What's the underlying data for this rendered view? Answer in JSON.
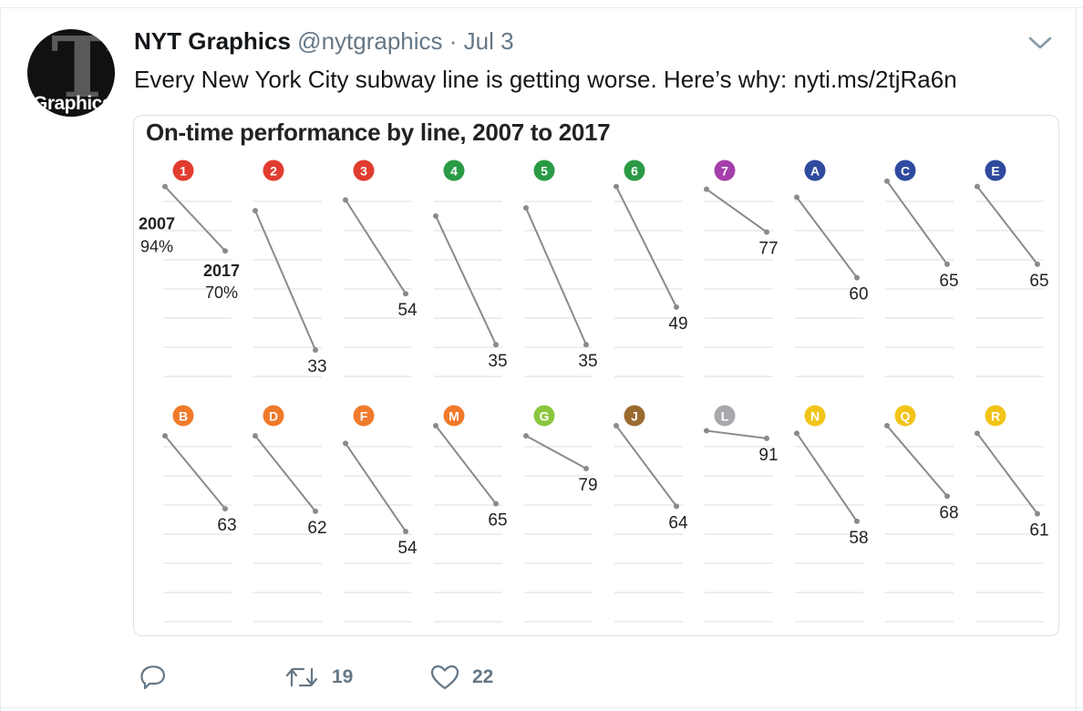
{
  "tweet": {
    "author_name": "NYT Graphics",
    "handle": "@nytgraphics",
    "separator": "·",
    "date": "Jul 3",
    "text": "Every New York City subway line is getting worse. Here’s why: nyti.ms/2tjRa6n",
    "avatar_text": "Graphics",
    "avatar_glyph": "T",
    "retweet_count": "19",
    "like_count": "22",
    "icons": {
      "caret": "chevron-down-icon",
      "reply": "reply-icon",
      "retweet": "retweet-icon",
      "like": "heart-icon"
    }
  },
  "chart_data": {
    "type": "line",
    "title": "On-time performance by line, 2007 to 2017",
    "x": [
      "2007",
      "2017"
    ],
    "unit": "%",
    "annotation": {
      "line": "1",
      "start_year": "2007",
      "start_label": "94%",
      "end_year": "2017",
      "end_label": "70%"
    },
    "series": [
      {
        "name": "1",
        "color": "#e03c2f",
        "values": [
          94,
          70
        ]
      },
      {
        "name": "2",
        "color": "#e03c2f",
        "values": [
          85,
          33
        ]
      },
      {
        "name": "3",
        "color": "#e03c2f",
        "values": [
          89,
          54
        ]
      },
      {
        "name": "4",
        "color": "#2a9a45",
        "values": [
          83,
          35
        ]
      },
      {
        "name": "5",
        "color": "#2a9a45",
        "values": [
          86,
          35
        ]
      },
      {
        "name": "6",
        "color": "#2a9a45",
        "values": [
          94,
          49
        ]
      },
      {
        "name": "7",
        "color": "#a53fab",
        "values": [
          93,
          77
        ]
      },
      {
        "name": "A",
        "color": "#2f4a9e",
        "values": [
          90,
          60
        ]
      },
      {
        "name": "C",
        "color": "#2f4a9e",
        "values": [
          96,
          65
        ]
      },
      {
        "name": "E",
        "color": "#2f4a9e",
        "values": [
          94,
          65
        ]
      },
      {
        "name": "B",
        "color": "#f07a2b",
        "values": [
          92,
          63
        ]
      },
      {
        "name": "D",
        "color": "#f07a2b",
        "values": [
          92,
          62
        ]
      },
      {
        "name": "F",
        "color": "#f07a2b",
        "values": [
          89,
          54
        ]
      },
      {
        "name": "M",
        "color": "#f07a2b",
        "values": [
          96,
          65
        ]
      },
      {
        "name": "G",
        "color": "#8cc63f",
        "values": [
          92,
          79
        ]
      },
      {
        "name": "J",
        "color": "#9a6a2f",
        "values": [
          96,
          64
        ]
      },
      {
        "name": "L",
        "color": "#a7a9ac",
        "values": [
          94,
          91
        ]
      },
      {
        "name": "N",
        "color": "#f2c417",
        "values": [
          93,
          58
        ]
      },
      {
        "name": "Q",
        "color": "#f2c417",
        "values": [
          96,
          68
        ]
      },
      {
        "name": "R",
        "color": "#f2c417",
        "values": [
          93,
          61
        ]
      }
    ]
  }
}
